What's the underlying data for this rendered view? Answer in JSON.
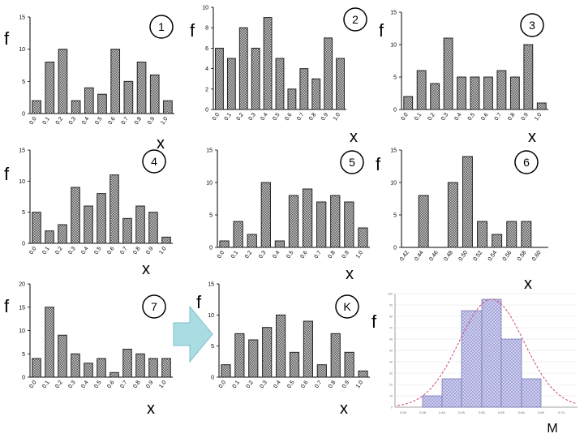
{
  "chart_data": [
    {
      "type": "bar",
      "id": "1",
      "badge": "1",
      "ylabel": "f",
      "xlabel": "x",
      "categories": [
        "0.0",
        "0.1",
        "0.2",
        "0.3",
        "0.4",
        "0.5",
        "0.6",
        "0.7",
        "0.8",
        "0.9",
        "1.0"
      ],
      "values": [
        2,
        8,
        10,
        2,
        4,
        3,
        10,
        5,
        8,
        6,
        2
      ],
      "ylim": [
        0,
        15
      ],
      "yticks": [
        "0",
        "5",
        "10",
        "15"
      ]
    },
    {
      "type": "bar",
      "id": "2",
      "badge": "2",
      "ylabel": "f",
      "xlabel": "x",
      "categories": [
        "0.0",
        "0.1",
        "0.2",
        "0.3",
        "0.4",
        "0.5",
        "0.6",
        "0.7",
        "0.8",
        "0.9",
        "1.0"
      ],
      "values": [
        6,
        5,
        8,
        6,
        9,
        5,
        2,
        4,
        3,
        7,
        5
      ],
      "ylim": [
        0,
        10
      ],
      "yticks": [
        "0",
        "2",
        "4",
        "6",
        "8",
        "10"
      ]
    },
    {
      "type": "bar",
      "id": "3",
      "badge": "3",
      "ylabel": "f",
      "xlabel": "x",
      "categories": [
        "0.0",
        "0.1",
        "0.2",
        "0.3",
        "0.4",
        "0.5",
        "0.6",
        "0.7",
        "0.8",
        "0.9",
        "1.0"
      ],
      "values": [
        2,
        6,
        4,
        11,
        5,
        5,
        5,
        6,
        5,
        10,
        1
      ],
      "ylim": [
        0,
        15
      ],
      "yticks": [
        "0",
        "5",
        "10",
        "15"
      ]
    },
    {
      "type": "bar",
      "id": "4",
      "badge": "4",
      "ylabel": "f",
      "xlabel": "x",
      "categories": [
        "0.0",
        "0.1",
        "0.2",
        "0.3",
        "0.4",
        "0.5",
        "0.6",
        "0.7",
        "0.8",
        "0.9",
        "1.0"
      ],
      "values": [
        5,
        2,
        3,
        9,
        6,
        8,
        11,
        4,
        6,
        5,
        1
      ],
      "ylim": [
        0,
        15
      ],
      "yticks": [
        "0",
        "5",
        "10",
        "15"
      ]
    },
    {
      "type": "bar",
      "id": "5",
      "badge": "5",
      "ylabel": "",
      "xlabel": "x",
      "categories": [
        "0.0",
        "0.1",
        "0.2",
        "0.3",
        "0.4",
        "0.5",
        "0.6",
        "0.7",
        "0.8",
        "0.9",
        "1.0"
      ],
      "values": [
        1,
        4,
        2,
        10,
        1,
        8,
        9,
        7,
        8,
        7,
        3
      ],
      "ylim": [
        0,
        15
      ],
      "yticks": [
        "0",
        "5",
        "10",
        "15"
      ]
    },
    {
      "type": "bar",
      "id": "6",
      "badge": "6",
      "ylabel": "f",
      "xlabel": "x",
      "categories": [
        "0.42",
        "0.44",
        "0.46",
        "0.48",
        "0.50",
        "0.52",
        "0.54",
        "0.56",
        "0.58",
        "0.60"
      ],
      "values": [
        0,
        8,
        0,
        10,
        14,
        4,
        2,
        4,
        4,
        0
      ],
      "ylim": [
        0,
        15
      ],
      "yticks": [
        "0",
        "5",
        "10",
        "15"
      ]
    },
    {
      "type": "bar",
      "id": "7",
      "badge": "7",
      "ylabel": "f",
      "xlabel": "x",
      "categories": [
        "0.0",
        "0.1",
        "0.2",
        "0.3",
        "0.4",
        "0.5",
        "0.6",
        "0.7",
        "0.8",
        "0.9",
        "1.0"
      ],
      "values": [
        4,
        15,
        9,
        5,
        3,
        4,
        1,
        6,
        5,
        4,
        4
      ],
      "ylim": [
        0,
        20
      ],
      "yticks": [
        "0",
        "5",
        "10",
        "15",
        "20"
      ]
    },
    {
      "type": "bar",
      "id": "K",
      "badge": "K",
      "ylabel": "f",
      "xlabel": "x",
      "categories": [
        "0.0",
        "0.1",
        "0.2",
        "0.3",
        "0.4",
        "0.5",
        "0.6",
        "0.7",
        "0.8",
        "0.9",
        "1.0"
      ],
      "values": [
        2,
        7,
        6,
        8,
        10,
        4,
        9,
        2,
        7,
        4,
        1
      ],
      "ylim": [
        0,
        15
      ],
      "yticks": [
        "0",
        "5",
        "10",
        "15"
      ]
    },
    {
      "type": "histogram",
      "id": "M",
      "badge": "",
      "ylabel": "f",
      "xlabel": "M",
      "categories": [
        "0.00",
        "0.38",
        "0.40",
        "0.45",
        "0.50",
        "0.55",
        "0.60",
        "0.65",
        "0.70"
      ],
      "values": [
        0,
        10,
        25,
        85,
        95,
        60,
        25,
        0
      ],
      "overlay": "normal-curve",
      "ylim": [
        0,
        100
      ],
      "yticks": [
        "0",
        "10",
        "20",
        "30",
        "40",
        "50",
        "60",
        "70",
        "80",
        "90",
        "100"
      ]
    }
  ],
  "colors": {
    "bar_fill": "#9a9a9a",
    "bar_stroke": "#222222",
    "hist_fill": "#c8c8e8",
    "hist_stroke": "#7a7ab8",
    "curve": "#d04a7a",
    "arrow": "#a9dde3"
  }
}
